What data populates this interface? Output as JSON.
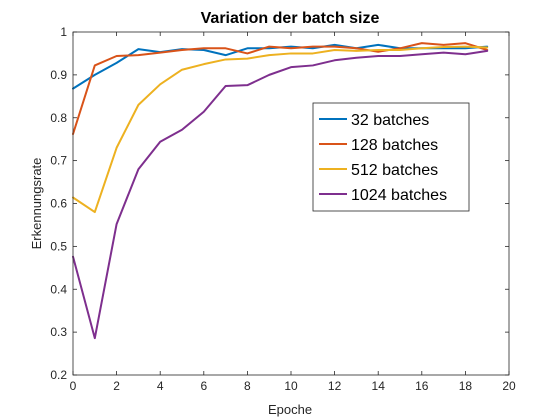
{
  "chart_data": {
    "type": "line",
    "title": "Variation der batch size",
    "xlabel": "Epoche",
    "ylabel": "Erkennungsrate",
    "xlim": [
      0,
      20
    ],
    "ylim": [
      0.2,
      1
    ],
    "xticks": [
      0,
      2,
      4,
      6,
      8,
      10,
      12,
      14,
      16,
      18,
      20
    ],
    "yticks": [
      0.2,
      0.3,
      0.4,
      0.5,
      0.6,
      0.7,
      0.8,
      0.9,
      1
    ],
    "x": [
      0,
      1,
      2,
      3,
      4,
      5,
      6,
      7,
      8,
      9,
      10,
      11,
      12,
      13,
      14,
      15,
      16,
      17,
      18,
      19
    ],
    "grid": false,
    "legend_position": "center-right",
    "series": [
      {
        "name": "32 batches",
        "color": "#0072BD",
        "values": [
          0.868,
          0.9,
          0.928,
          0.96,
          0.953,
          0.96,
          0.958,
          0.946,
          0.962,
          0.962,
          0.966,
          0.962,
          0.97,
          0.962,
          0.97,
          0.962,
          0.962,
          0.962,
          0.962,
          0.966
        ]
      },
      {
        "name": "128 batches",
        "color": "#D95319",
        "values": [
          0.762,
          0.922,
          0.944,
          0.946,
          0.952,
          0.958,
          0.962,
          0.962,
          0.95,
          0.966,
          0.962,
          0.966,
          0.966,
          0.962,
          0.954,
          0.962,
          0.974,
          0.97,
          0.974,
          0.958
        ]
      },
      {
        "name": "512 batches",
        "color": "#EDB120",
        "values": [
          0.614,
          0.58,
          0.73,
          0.83,
          0.878,
          0.912,
          0.925,
          0.936,
          0.938,
          0.946,
          0.95,
          0.95,
          0.958,
          0.956,
          0.958,
          0.958,
          0.962,
          0.965,
          0.966,
          0.964
        ]
      },
      {
        "name": "1024 batches",
        "color": "#7E2F8E",
        "values": [
          0.476,
          0.286,
          0.552,
          0.68,
          0.744,
          0.772,
          0.814,
          0.874,
          0.876,
          0.9,
          0.918,
          0.922,
          0.934,
          0.94,
          0.944,
          0.944,
          0.948,
          0.952,
          0.948,
          0.956
        ]
      }
    ]
  }
}
